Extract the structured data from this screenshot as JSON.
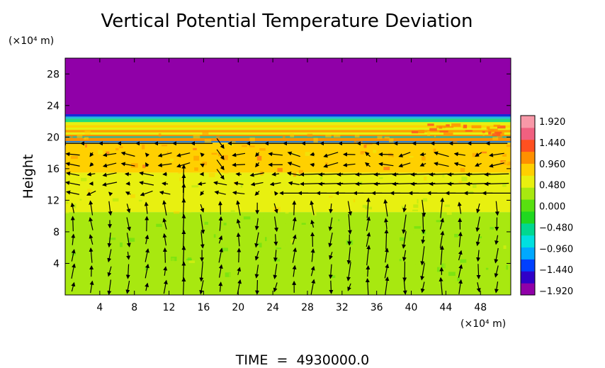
{
  "chart_data": {
    "type": "heatmap",
    "title": "Vertical Potential Temperature Deviation",
    "ylabel": "Height",
    "y_unit_label": "(×10⁴ m)",
    "x_unit_label": "(×10⁴ m)",
    "footer": "TIME  =  4930000.0",
    "xlim": [
      0,
      51.5
    ],
    "ylim": [
      0,
      30
    ],
    "x_ticks": [
      4,
      8,
      12,
      16,
      20,
      24,
      28,
      32,
      36,
      40,
      44,
      48
    ],
    "y_ticks": [
      4,
      8,
      12,
      16,
      20,
      24,
      28
    ],
    "colorbar": {
      "labels": [
        "1.920",
        "1.440",
        "0.960",
        "0.480",
        "0.000",
        "−0.480",
        "−0.960",
        "−1.440",
        "−1.920"
      ],
      "range": [
        -1.92,
        1.92
      ],
      "colors": [
        "#9000a8",
        "#3000c8",
        "#0040ff",
        "#00a8ff",
        "#00e0e0",
        "#00d890",
        "#20d820",
        "#58e010",
        "#a8e810",
        "#e8f010",
        "#ffd000",
        "#ff9000",
        "#ff5020",
        "#f06080",
        "#f898a8"
      ]
    },
    "bands": [
      {
        "y0": 0,
        "y1": 10.5,
        "value": 0.2
      },
      {
        "y0": 10.5,
        "y1": 15.5,
        "value": 0.45
      },
      {
        "y0": 15.5,
        "y1": 19.3,
        "value": 0.85
      },
      {
        "y0": 19.3,
        "y1": 20.3,
        "value": 1.1
      },
      {
        "y0": 20.3,
        "y1": 22.6,
        "value": 0.6
      },
      {
        "y0": 22.6,
        "y1": 30,
        "value": -1.92
      }
    ],
    "vector_field": {
      "x_spacing": 2.13,
      "y_rows": [
        1,
        3,
        5,
        7,
        9,
        11,
        12.9,
        14.1,
        15.3,
        16.5,
        17.8,
        19.2
      ]
    }
  }
}
